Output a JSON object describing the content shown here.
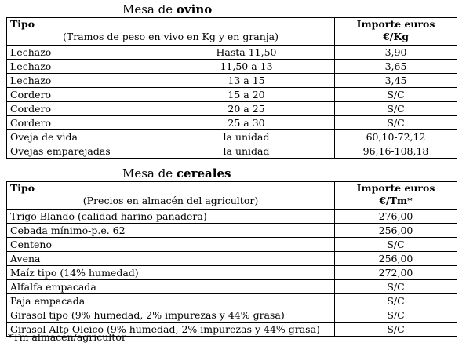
{
  "ovino": {
    "title_prefix": "Mesa de ",
    "title_bold": "ovino",
    "header": {
      "col1_title": "Tipo",
      "col1_subtitle": "(Tramos de peso en vivo en Kg y en granja)",
      "col3_title_line1": "Importe euros",
      "col3_title_line2": "€/Kg"
    },
    "rows": [
      {
        "tipo": "Lechazo",
        "tramo": "Hasta 11,50",
        "importe": "3,90"
      },
      {
        "tipo": "Lechazo",
        "tramo": "11,50 a 13",
        "importe": "3,65"
      },
      {
        "tipo": "Lechazo",
        "tramo": "13 a 15",
        "importe": "3,45"
      },
      {
        "tipo": "Cordero",
        "tramo": "15 a 20",
        "importe": "S/C"
      },
      {
        "tipo": "Cordero",
        "tramo": "20 a 25",
        "importe": "S/C"
      },
      {
        "tipo": "Cordero",
        "tramo": "25 a 30",
        "importe": "S/C"
      },
      {
        "tipo": "Oveja de vida",
        "tramo": "la unidad",
        "importe": "60,10-72,12"
      },
      {
        "tipo": "Ovejas emparejadas",
        "tramo": "la unidad",
        "importe": "96,16-108,18"
      }
    ]
  },
  "cereales": {
    "title_prefix": "Mesa de ",
    "title_bold": "cereales",
    "header": {
      "col1_title": "Tipo",
      "col1_subtitle": "(Precios en almacén del agricultor)",
      "col2_title_line1": "Importe euros",
      "col2_title_line2": "€/Tm*"
    },
    "rows": [
      {
        "tipo": "Trigo Blando (calidad harino-panadera)",
        "importe": "276,00"
      },
      {
        "tipo": "Cebada mínimo-p.e. 62",
        "importe": "256,00"
      },
      {
        "tipo": "Centeno",
        "importe": "S/C"
      },
      {
        "tipo": "Avena",
        "importe": "256,00"
      },
      {
        "tipo": "Maíz tipo (14% humedad)",
        "importe": "272,00"
      },
      {
        "tipo": "Alfalfa empacada",
        "importe": "S/C"
      },
      {
        "tipo": "Paja empacada",
        "importe": "S/C"
      },
      {
        "tipo": "Girasol tipo (9% humedad, 2% impurezas y 44% grasa)",
        "importe": "S/C"
      },
      {
        "tipo": "Girasol Alto Oleico (9% humedad, 2% impurezas y 44% grasa)",
        "importe": "S/C"
      }
    ],
    "footnote": "*Tm almacén/agricultor"
  }
}
